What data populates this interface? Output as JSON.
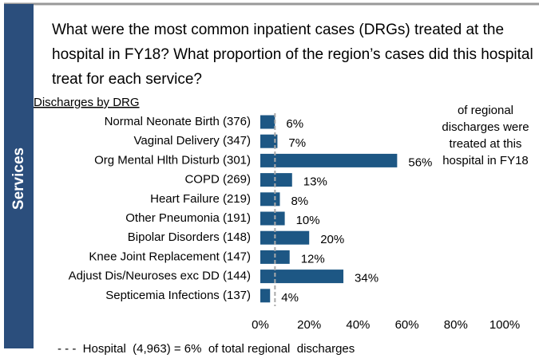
{
  "sidebar": "Services",
  "chart_data": {
    "type": "hbar",
    "title_lines": [
      "What were the most common inpatient cases (DRGs) treated at the",
      "hospital in FY18? What proportion of the region’s cases did this hospital",
      "treat for each service?"
    ],
    "subtitle": "Discharges by DRG",
    "categories": [
      "Normal Neonate Birth (376)",
      "Vaginal Delivery (347)",
      "Org Mental Hlth Disturb (301)",
      "COPD (269)",
      "Heart Failure (219)",
      "Other Pneumonia (191)",
      "Bipolar Disorders (148)",
      "Knee Joint Replacement (147)",
      "Adjust Dis/Neuroses exc DD (144)",
      "Septicemia Infections (137)"
    ],
    "values": [
      6,
      7,
      56,
      13,
      8,
      10,
      20,
      12,
      34,
      4
    ],
    "value_labels": [
      "6%",
      "7%",
      "56%",
      "13%",
      "8%",
      "10%",
      "20%",
      "12%",
      "34%",
      "4%"
    ],
    "color": "#1d5784",
    "xlim": [
      0,
      100
    ],
    "xticks": [
      {
        "value": 0,
        "label": "0%"
      },
      {
        "value": 20,
        "label": "20%"
      },
      {
        "value": 40,
        "label": "40%"
      },
      {
        "value": 60,
        "label": "60%"
      },
      {
        "value": 80,
        "label": "80%"
      },
      {
        "value": 100,
        "label": "100%"
      }
    ],
    "annotation_lines": [
      "of regional",
      "discharges were",
      "treated at this",
      "hospital in FY18"
    ],
    "reference": {
      "value": 6,
      "label": "- - -  Hospital  (4,963) = 6%  of total regional  discharges"
    }
  }
}
